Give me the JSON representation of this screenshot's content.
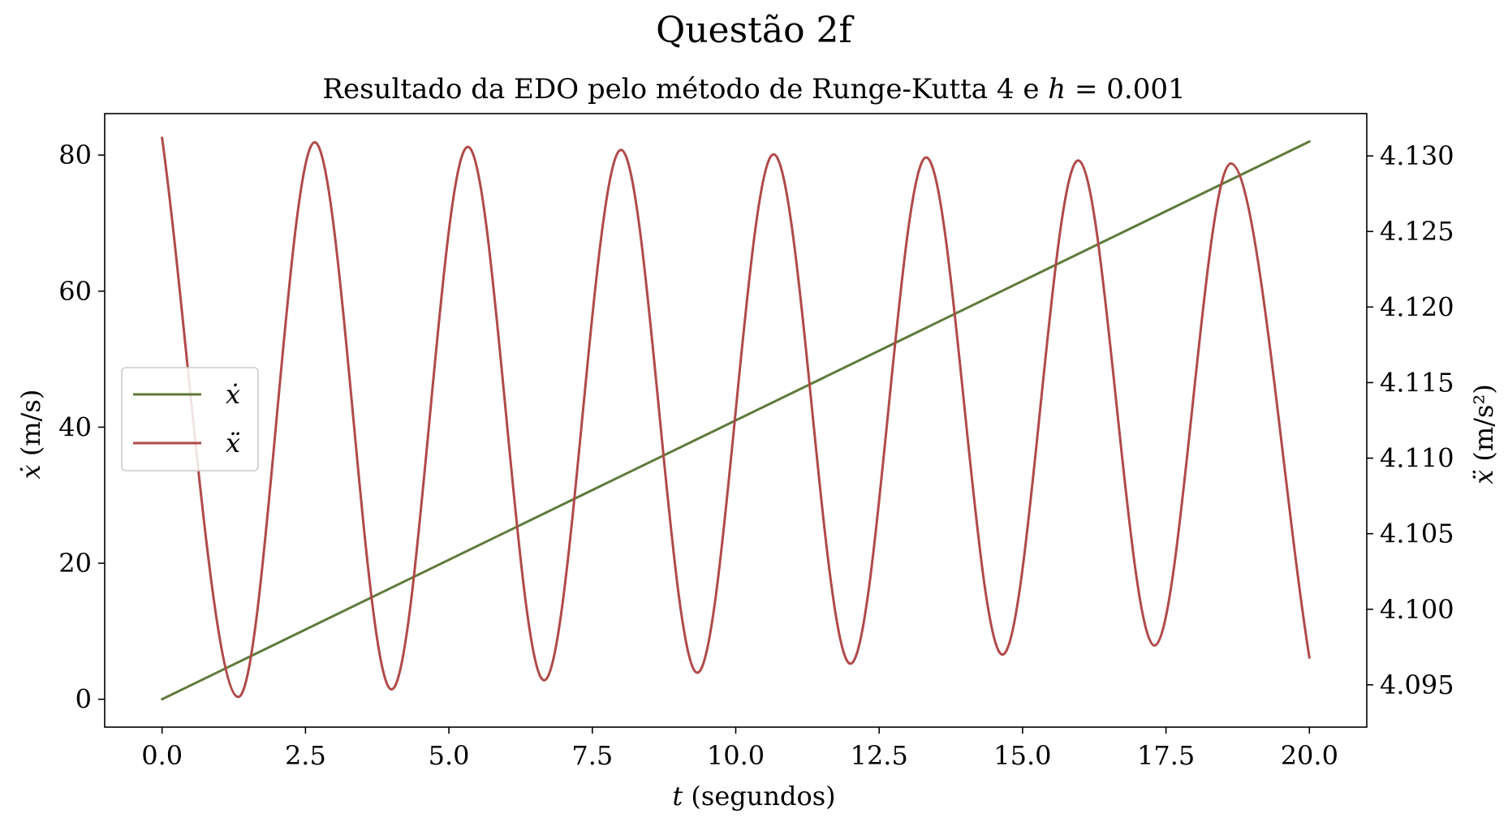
{
  "figure": {
    "suptitle": "Questão 2f",
    "subtitle_text": "Resultado da EDO pelo método de Runge-Kutta 4 e ",
    "subtitle_math_var": "h",
    "subtitle_math_rest": " = 0.001"
  },
  "chart_data": {
    "type": "line",
    "title": "Resultado da EDO pelo método de Runge-Kutta 4 e h = 0.001",
    "xlabel_math": "t",
    "xlabel_text": " (segundos)",
    "ylabel_left_math": "ẋ",
    "ylabel_left_text": " (m/s)",
    "ylabel_right_math": "ẍ",
    "ylabel_right_text": " (m/s²)",
    "xlim": [
      -1.0,
      21.0
    ],
    "ylim_left": [
      -4.1,
      86.1
    ],
    "ylim_right": [
      4.0922,
      4.1328
    ],
    "xticks": [
      "0.0",
      "2.5",
      "5.0",
      "7.5",
      "10.0",
      "12.5",
      "15.0",
      "17.5",
      "20.0"
    ],
    "yticks_left": [
      "0",
      "20",
      "40",
      "60",
      "80"
    ],
    "yticks_right": [
      "4.095",
      "4.100",
      "4.105",
      "4.110",
      "4.115",
      "4.120",
      "4.125",
      "4.130"
    ],
    "grid": false,
    "legend_position": "center-left",
    "series": [
      {
        "name": "ẋ",
        "axis": "left",
        "color": "#5f7a3a",
        "x": [
          0.0,
          2.5,
          5.0,
          7.5,
          10.0,
          12.5,
          15.0,
          17.5,
          20.0
        ],
        "y": [
          0.0,
          10.25,
          20.5,
          30.75,
          41.0,
          51.25,
          61.5,
          71.75,
          82.0
        ]
      },
      {
        "name": "ẍ",
        "axis": "right",
        "color": "#b04a48",
        "x": [
          0.0,
          1.33,
          2.66,
          4.0,
          5.33,
          6.66,
          8.0,
          9.33,
          10.66,
          12.0,
          13.32,
          14.65,
          15.97,
          17.3,
          18.63,
          20.0
        ],
        "y": [
          4.1312,
          4.0942,
          4.1309,
          4.0947,
          4.1306,
          4.0953,
          4.1304,
          4.0958,
          4.1301,
          4.0964,
          4.1299,
          4.097,
          4.1297,
          4.0976,
          4.1295,
          4.0968
        ]
      }
    ]
  }
}
